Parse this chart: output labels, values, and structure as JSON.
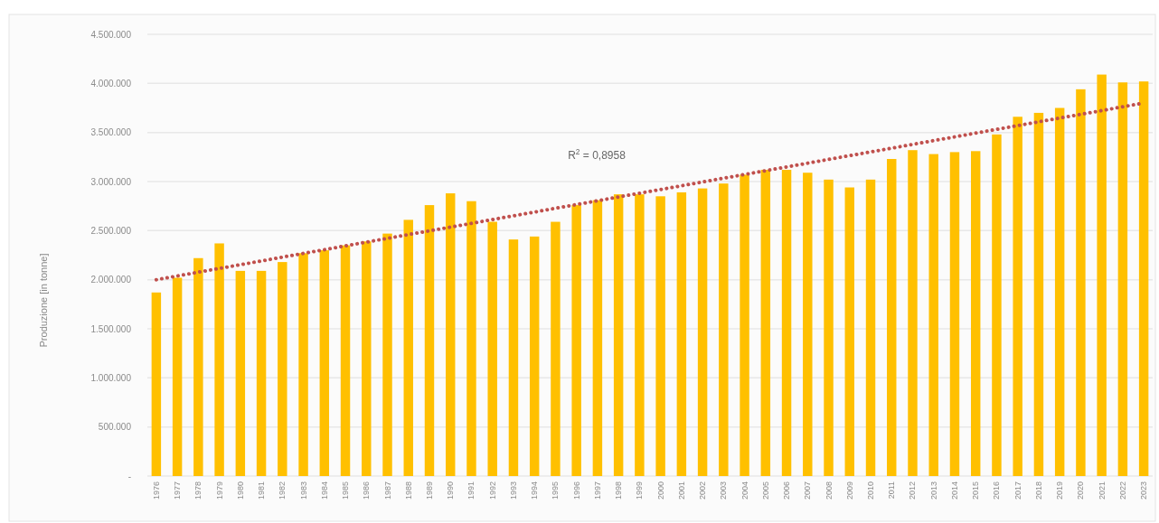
{
  "chart_data": {
    "type": "bar",
    "ylabel": "Produzione [in tonne]",
    "categories": [
      "1976",
      "1977",
      "1978",
      "1979",
      "1980",
      "1981",
      "1982",
      "1983",
      "1984",
      "1985",
      "1986",
      "1987",
      "1988",
      "1989",
      "1990",
      "1991",
      "1992",
      "1993",
      "1994",
      "1995",
      "1996",
      "1997",
      "1998",
      "1999",
      "2000",
      "2001",
      "2002",
      "2003",
      "2004",
      "2005",
      "2006",
      "2007",
      "2008",
      "2009",
      "2010",
      "2011",
      "2012",
      "2013",
      "2014",
      "2015",
      "2016",
      "2017",
      "2018",
      "2019",
      "2020",
      "2021",
      "2022",
      "2023"
    ],
    "series": [
      {
        "color": "#ffc000",
        "values": [
          1870000,
          2020000,
          2220000,
          2370000,
          2090000,
          2090000,
          2180000,
          2270000,
          2300000,
          2350000,
          2390000,
          2470000,
          2610000,
          2760000,
          2880000,
          2800000,
          2590000,
          2410000,
          2440000,
          2590000,
          2760000,
          2810000,
          2870000,
          2870000,
          2850000,
          2890000,
          2930000,
          2980000,
          3070000,
          3120000,
          3120000,
          3090000,
          3020000,
          2940000,
          3020000,
          3230000,
          3320000,
          3280000,
          3300000,
          3310000,
          3480000,
          3660000,
          3700000,
          3750000,
          3940000,
          4090000,
          4010000,
          4020000
        ]
      },
      {
        "type": "line",
        "color": "#c0504d",
        "line_style": "dotted",
        "values": [
          2000000,
          2038000,
          2077000,
          2115000,
          2153000,
          2191000,
          2230000,
          2268000,
          2306000,
          2345000,
          2383000,
          2421000,
          2460000,
          2498000,
          2536000,
          2574000,
          2613000,
          2651000,
          2689000,
          2728000,
          2766000,
          2804000,
          2843000,
          2881000,
          2919000,
          2957000,
          2996000,
          3034000,
          3072000,
          3111000,
          3149000,
          3187000,
          3226000,
          3264000,
          3302000,
          3340000,
          3379000,
          3417000,
          3455000,
          3494000,
          3532000,
          3570000,
          3609000,
          3647000,
          3685000,
          3723000,
          3762000,
          3800000
        ]
      }
    ],
    "ylim": [
      0,
      4500000
    ],
    "yticks": [
      {
        "value": 0,
        "label": "-"
      },
      {
        "value": 500000,
        "label": "500.000"
      },
      {
        "value": 1000000,
        "label": "1.000.000"
      },
      {
        "value": 1500000,
        "label": "1.500.000"
      },
      {
        "value": 2000000,
        "label": "2.000.000"
      },
      {
        "value": 2500000,
        "label": "2.500.000"
      },
      {
        "value": 3000000,
        "label": "3.000.000"
      },
      {
        "value": 3500000,
        "label": "3.500.000"
      },
      {
        "value": 4000000,
        "label": "4.000.000"
      },
      {
        "value": 4500000,
        "label": "4.500.000"
      }
    ],
    "grid": "y",
    "annotations": [
      "R$^{2}$ = 0,8958"
    ]
  }
}
